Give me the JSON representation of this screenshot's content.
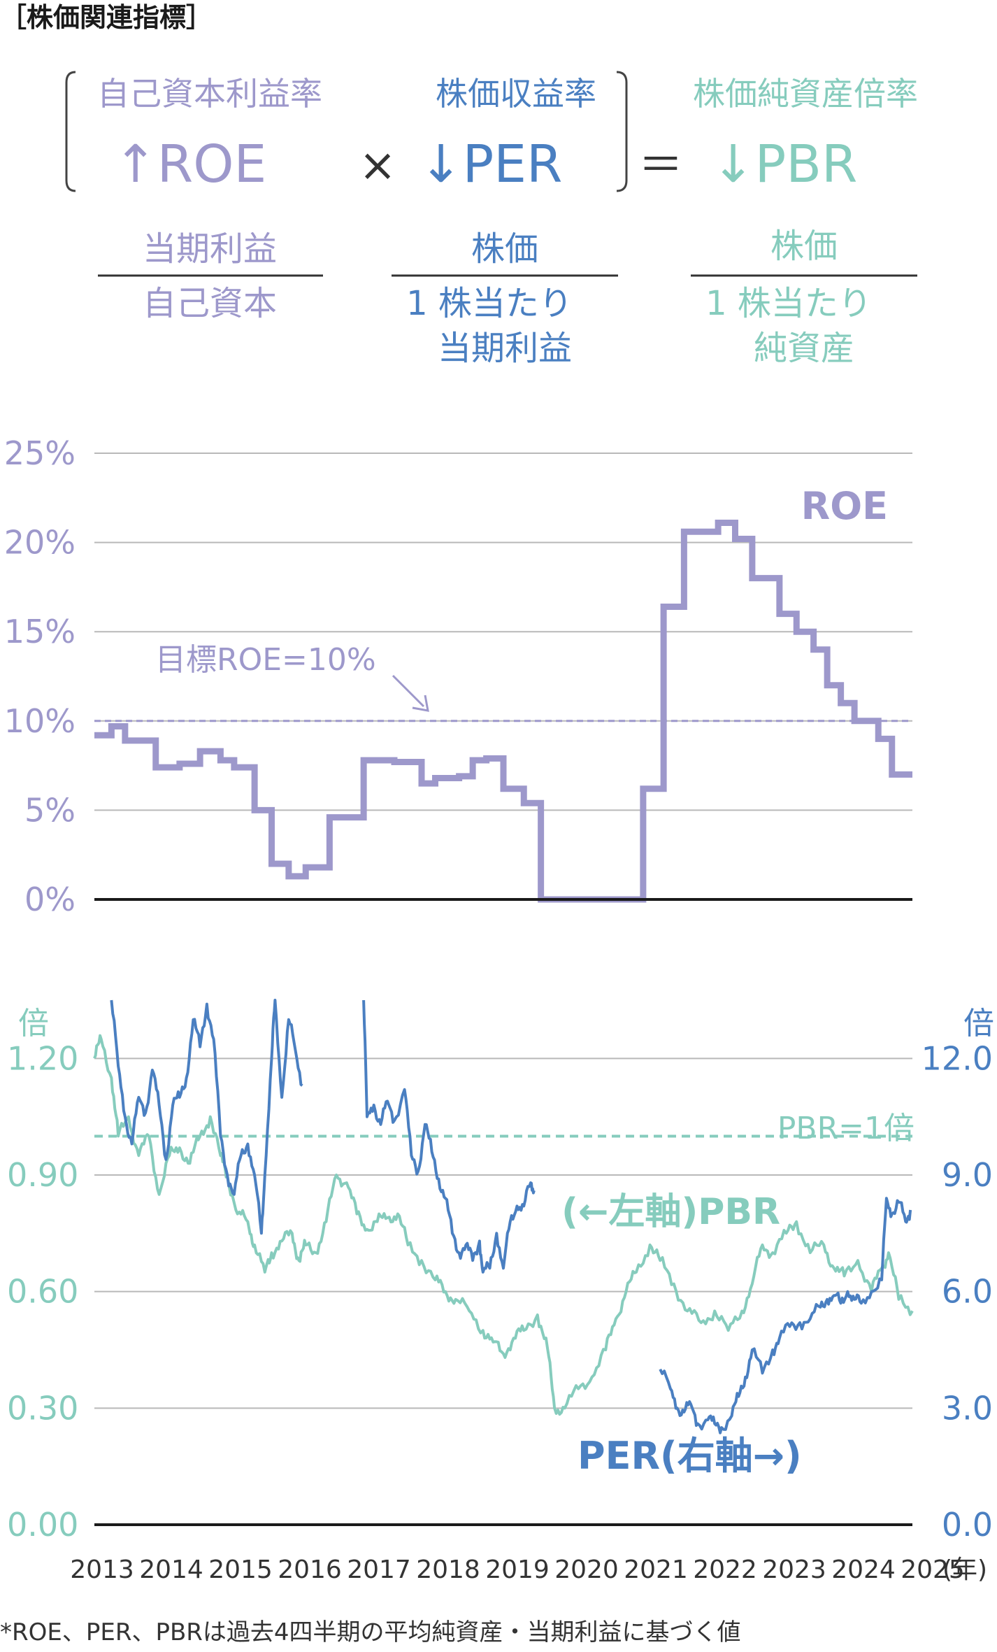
{
  "heading": "［株価関連指標］",
  "colors": {
    "roe": "#9d98cb",
    "per": "#4a7fc1",
    "pbr": "#86ccbd",
    "axis": "#1a1a1a",
    "grid": "#b9b9b9",
    "note": "#333333"
  },
  "formula": {
    "roe_name": "自己資本利益率",
    "roe_abbr": "↑ROE",
    "times": "×",
    "per_name": "株価収益率",
    "per_abbr": "↓PER",
    "equals": "＝",
    "pbr_name": "株価純資産倍率",
    "pbr_abbr": "↓PBR",
    "roe_num": "当期利益",
    "roe_den": "自己資本",
    "per_num": "株価",
    "per_den_1": "1 株当たり",
    "per_den_2": "当期利益",
    "pbr_num": "株価",
    "pbr_den_1": "1 株当たり",
    "pbr_den_2": "純資産"
  },
  "footnote": "*ROE、PER、PBRは過去4四半期の平均純資産・当期利益に基づく値",
  "chart_data": [
    {
      "type": "line",
      "step": true,
      "yticks": [
        "25%",
        "20%",
        "15%",
        "10%",
        "5%",
        "0%"
      ],
      "ylim": [
        0,
        25
      ],
      "xlim": [
        2013.0,
        2025.0
      ],
      "series": [
        {
          "name": "ROE",
          "points": [
            [
              2013.0,
              9.2
            ],
            [
              2013.25,
              9.7
            ],
            [
              2013.45,
              8.9
            ],
            [
              2013.9,
              7.4
            ],
            [
              2014.25,
              7.6
            ],
            [
              2014.55,
              8.3
            ],
            [
              2014.85,
              7.8
            ],
            [
              2015.05,
              7.4
            ],
            [
              2015.35,
              5.0
            ],
            [
              2015.6,
              2.0
            ],
            [
              2015.85,
              1.3
            ],
            [
              2016.1,
              1.8
            ],
            [
              2016.45,
              4.6
            ],
            [
              2016.95,
              7.8
            ],
            [
              2017.4,
              7.7
            ],
            [
              2017.8,
              6.5
            ],
            [
              2018.0,
              6.8
            ],
            [
              2018.35,
              6.9
            ],
            [
              2018.55,
              7.8
            ],
            [
              2018.75,
              7.9
            ],
            [
              2019.0,
              6.2
            ],
            [
              2019.3,
              5.4
            ],
            [
              2019.55,
              0.0
            ],
            [
              2020.95,
              0.0
            ],
            [
              2021.05,
              6.2
            ],
            [
              2021.35,
              16.4
            ],
            [
              2021.65,
              20.6
            ],
            [
              2022.15,
              21.1
            ],
            [
              2022.4,
              20.2
            ],
            [
              2022.65,
              18.0
            ],
            [
              2023.05,
              16.0
            ],
            [
              2023.3,
              15.0
            ],
            [
              2023.55,
              14.0
            ],
            [
              2023.75,
              12.0
            ],
            [
              2023.95,
              11.0
            ],
            [
              2024.15,
              10.0
            ],
            [
              2024.5,
              9.0
            ],
            [
              2024.7,
              7.0
            ],
            [
              2025.0,
              7.0
            ]
          ]
        }
      ],
      "reference": {
        "label": "目標ROE=10%",
        "value": 10
      }
    },
    {
      "type": "line",
      "y_left": {
        "ticks": [
          "1.20",
          "0.90",
          "0.60",
          "0.30",
          "0.00"
        ],
        "ylim": [
          0,
          1.44
        ],
        "unit": "倍"
      },
      "y_right": {
        "ticks": [
          "12.0",
          "9.0",
          "6.0",
          "3.0",
          "0.0"
        ],
        "ylim": [
          0,
          14.4
        ],
        "unit": "倍"
      },
      "xlim": [
        2013.0,
        2025.0
      ],
      "x_ticks": [
        "2013",
        "2014",
        "2015",
        "2016",
        "2017",
        "2018",
        "2019",
        "2020",
        "2021",
        "2022",
        "2023",
        "2024",
        "2025"
      ],
      "x_unit": "(年)",
      "series": [
        {
          "name": "PBR",
          "label": "(←左軸)PBR",
          "axis": "left",
          "points": [
            [
              2013.0,
              1.2
            ],
            [
              2013.1,
              1.25
            ],
            [
              2013.25,
              1.15
            ],
            [
              2013.35,
              1.0
            ],
            [
              2013.5,
              1.05
            ],
            [
              2013.65,
              0.95
            ],
            [
              2013.8,
              1.0
            ],
            [
              2013.95,
              0.85
            ],
            [
              2014.1,
              0.95
            ],
            [
              2014.25,
              0.97
            ],
            [
              2014.4,
              0.93
            ],
            [
              2014.55,
              1.0
            ],
            [
              2014.7,
              1.05
            ],
            [
              2014.85,
              0.95
            ],
            [
              2014.95,
              0.9
            ],
            [
              2015.1,
              0.8
            ],
            [
              2015.25,
              0.78
            ],
            [
              2015.35,
              0.72
            ],
            [
              2015.5,
              0.65
            ],
            [
              2015.6,
              0.7
            ],
            [
              2015.75,
              0.73
            ],
            [
              2015.9,
              0.75
            ],
            [
              2016.0,
              0.68
            ],
            [
              2016.1,
              0.72
            ],
            [
              2016.25,
              0.7
            ],
            [
              2016.4,
              0.78
            ],
            [
              2016.55,
              0.9
            ],
            [
              2016.7,
              0.88
            ],
            [
              2016.85,
              0.8
            ],
            [
              2017.0,
              0.76
            ],
            [
              2017.15,
              0.78
            ],
            [
              2017.3,
              0.79
            ],
            [
              2017.45,
              0.8
            ],
            [
              2017.6,
              0.72
            ],
            [
              2017.8,
              0.68
            ],
            [
              2018.0,
              0.63
            ],
            [
              2018.15,
              0.6
            ],
            [
              2018.3,
              0.58
            ],
            [
              2018.5,
              0.55
            ],
            [
              2018.7,
              0.5
            ],
            [
              2018.85,
              0.47
            ],
            [
              2019.0,
              0.44
            ],
            [
              2019.15,
              0.48
            ],
            [
              2019.3,
              0.5
            ],
            [
              2019.5,
              0.54
            ],
            [
              2019.65,
              0.45
            ],
            [
              2019.75,
              0.3
            ],
            [
              2019.9,
              0.3
            ],
            [
              2020.1,
              0.35
            ],
            [
              2020.3,
              0.38
            ],
            [
              2020.5,
              0.45
            ],
            [
              2020.65,
              0.53
            ],
            [
              2020.8,
              0.6
            ],
            [
              2020.95,
              0.65
            ],
            [
              2021.15,
              0.72
            ],
            [
              2021.3,
              0.68
            ],
            [
              2021.5,
              0.62
            ],
            [
              2021.7,
              0.55
            ],
            [
              2021.9,
              0.52
            ],
            [
              2022.1,
              0.55
            ],
            [
              2022.3,
              0.5
            ],
            [
              2022.5,
              0.55
            ],
            [
              2022.65,
              0.62
            ],
            [
              2022.8,
              0.72
            ],
            [
              2022.95,
              0.7
            ],
            [
              2023.15,
              0.75
            ],
            [
              2023.3,
              0.78
            ],
            [
              2023.5,
              0.7
            ],
            [
              2023.7,
              0.72
            ],
            [
              2023.85,
              0.66
            ],
            [
              2024.0,
              0.64
            ],
            [
              2024.2,
              0.68
            ],
            [
              2024.4,
              0.6
            ],
            [
              2024.55,
              0.66
            ],
            [
              2024.65,
              0.7
            ],
            [
              2024.8,
              0.58
            ],
            [
              2025.0,
              0.55
            ]
          ]
        },
        {
          "name": "PER",
          "label": "PER(右軸→)",
          "axis": "right",
          "segments": [
            [
              [
                2013.25,
                13.5
              ],
              [
                2013.35,
                11.8
              ],
              [
                2013.45,
                10.5
              ],
              [
                2013.55,
                9.8
              ],
              [
                2013.65,
                11.0
              ],
              [
                2013.75,
                10.6
              ],
              [
                2013.85,
                11.7
              ],
              [
                2013.95,
                10.8
              ],
              [
                2014.05,
                9.4
              ],
              [
                2014.15,
                10.8
              ],
              [
                2014.25,
                11.0
              ],
              [
                2014.35,
                11.5
              ],
              [
                2014.45,
                13.0
              ],
              [
                2014.55,
                12.3
              ],
              [
                2014.65,
                13.4
              ],
              [
                2014.75,
                12.5
              ],
              [
                2014.85,
                10.0
              ],
              [
                2014.95,
                9.0
              ],
              [
                2015.05,
                8.5
              ],
              [
                2015.15,
                9.5
              ],
              [
                2015.25,
                9.8
              ],
              [
                2015.35,
                9.0
              ],
              [
                2015.45,
                7.5
              ],
              [
                2015.5,
                9.0
              ],
              [
                2015.6,
                12.0
              ],
              [
                2015.65,
                13.5
              ],
              [
                2015.75,
                11.0
              ],
              [
                2015.85,
                13.0
              ],
              [
                2015.95,
                12.2
              ],
              [
                2016.05,
                11.3
              ]
            ],
            [
              [
                2016.95,
                13.5
              ],
              [
                2017.0,
                10.5
              ],
              [
                2017.1,
                10.8
              ],
              [
                2017.2,
                10.3
              ],
              [
                2017.3,
                10.9
              ],
              [
                2017.4,
                10.4
              ],
              [
                2017.55,
                11.2
              ],
              [
                2017.65,
                9.5
              ],
              [
                2017.75,
                9.1
              ],
              [
                2017.85,
                10.3
              ],
              [
                2017.95,
                9.6
              ],
              [
                2018.05,
                8.9
              ],
              [
                2018.15,
                8.4
              ],
              [
                2018.25,
                7.5
              ],
              [
                2018.35,
                7.0
              ],
              [
                2018.45,
                7.2
              ],
              [
                2018.55,
                6.8
              ],
              [
                2018.65,
                7.3
              ],
              [
                2018.7,
                6.5
              ],
              [
                2018.8,
                6.6
              ],
              [
                2018.9,
                7.5
              ],
              [
                2019.0,
                6.6
              ],
              [
                2019.1,
                7.8
              ],
              [
                2019.2,
                8.2
              ],
              [
                2019.3,
                8.2
              ],
              [
                2019.4,
                8.8
              ],
              [
                2019.45,
                8.6
              ]
            ],
            [
              [
                2021.3,
                4.0
              ],
              [
                2021.45,
                3.5
              ],
              [
                2021.55,
                3.0
              ],
              [
                2021.65,
                2.9
              ],
              [
                2021.75,
                3.1
              ],
              [
                2021.85,
                2.6
              ],
              [
                2022.0,
                2.7
              ],
              [
                2022.1,
                2.6
              ],
              [
                2022.2,
                2.5
              ],
              [
                2022.35,
                2.8
              ],
              [
                2022.45,
                3.3
              ],
              [
                2022.55,
                3.8
              ],
              [
                2022.65,
                4.5
              ],
              [
                2022.8,
                3.9
              ],
              [
                2022.95,
                4.5
              ],
              [
                2023.05,
                4.8
              ],
              [
                2023.2,
                5.1
              ],
              [
                2023.35,
                5.2
              ],
              [
                2023.5,
                5.3
              ],
              [
                2023.65,
                5.6
              ],
              [
                2023.75,
                5.8
              ],
              [
                2023.85,
                5.9
              ],
              [
                2023.95,
                5.7
              ],
              [
                2024.05,
                6.0
              ],
              [
                2024.15,
                5.8
              ],
              [
                2024.25,
                5.7
              ],
              [
                2024.4,
                6.0
              ],
              [
                2024.55,
                6.3
              ],
              [
                2024.62,
                8.4
              ],
              [
                2024.7,
                8.0
              ],
              [
                2024.8,
                8.3
              ],
              [
                2024.9,
                7.8
              ],
              [
                2024.97,
                8.1
              ]
            ]
          ]
        }
      ],
      "reference": {
        "label": "PBR=1倍",
        "value": 1.0,
        "axis": "left"
      }
    }
  ]
}
